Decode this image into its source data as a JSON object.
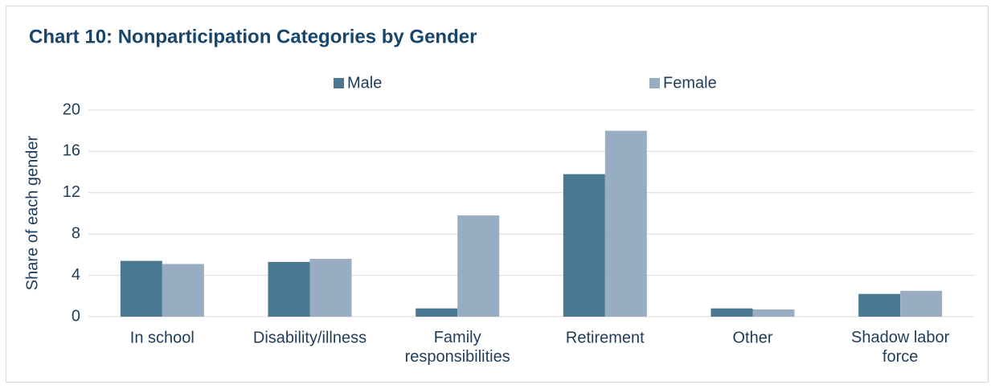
{
  "chart_data": {
    "type": "bar",
    "title": "Chart 10: Nonparticipation Categories by Gender",
    "y_label": "Share of each gender",
    "categories": [
      "In school",
      "Disability/illness",
      "Family\nresponsibilities",
      "Retirement",
      "Other",
      "Shadow labor\nforce"
    ],
    "series": [
      {
        "name": "Male",
        "color": "#4a7890",
        "values": [
          5.4,
          5.3,
          0.8,
          13.8,
          0.8,
          2.2
        ]
      },
      {
        "name": "Female",
        "color": "#98adc2",
        "values": [
          5.1,
          5.6,
          9.8,
          18.0,
          0.7,
          2.5
        ]
      }
    ],
    "ylim": [
      0,
      20
    ],
    "yticks": [
      0,
      4,
      8,
      12,
      16,
      20
    ],
    "grid": true,
    "legend": "top"
  }
}
